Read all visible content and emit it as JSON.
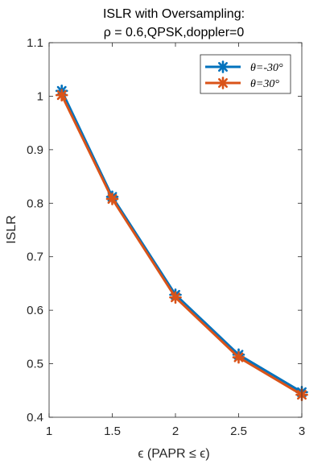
{
  "chart_data": {
    "type": "line",
    "title": "ISLR with Oversampling:",
    "subtitle": "ρ = 0.6,QPSK,doppler=0",
    "xlabel": "ϵ (PAPR ≤ ϵ)",
    "ylabel": "ISLR",
    "xlim": [
      1,
      3
    ],
    "ylim": [
      0.4,
      1.1
    ],
    "xticks": [
      "1",
      "1.5",
      "2",
      "2.5",
      "3"
    ],
    "yticks": [
      "0.4",
      "0.5",
      "0.6",
      "0.7",
      "0.8",
      "0.9",
      "1",
      "1.1"
    ],
    "grid": false,
    "legend_position": "top-right",
    "series": [
      {
        "name": "θ=-30°",
        "color": "#0072BD",
        "marker": "asterisk",
        "x": [
          1.1,
          1.5,
          2,
          2.5,
          3
        ],
        "y": [
          1.01,
          0.812,
          0.629,
          0.517,
          0.447
        ]
      },
      {
        "name": "θ=30°",
        "color": "#D95319",
        "marker": "asterisk",
        "x": [
          1.1,
          1.5,
          2,
          2.5,
          3
        ],
        "y": [
          1.002,
          0.808,
          0.624,
          0.512,
          0.442
        ]
      }
    ]
  }
}
